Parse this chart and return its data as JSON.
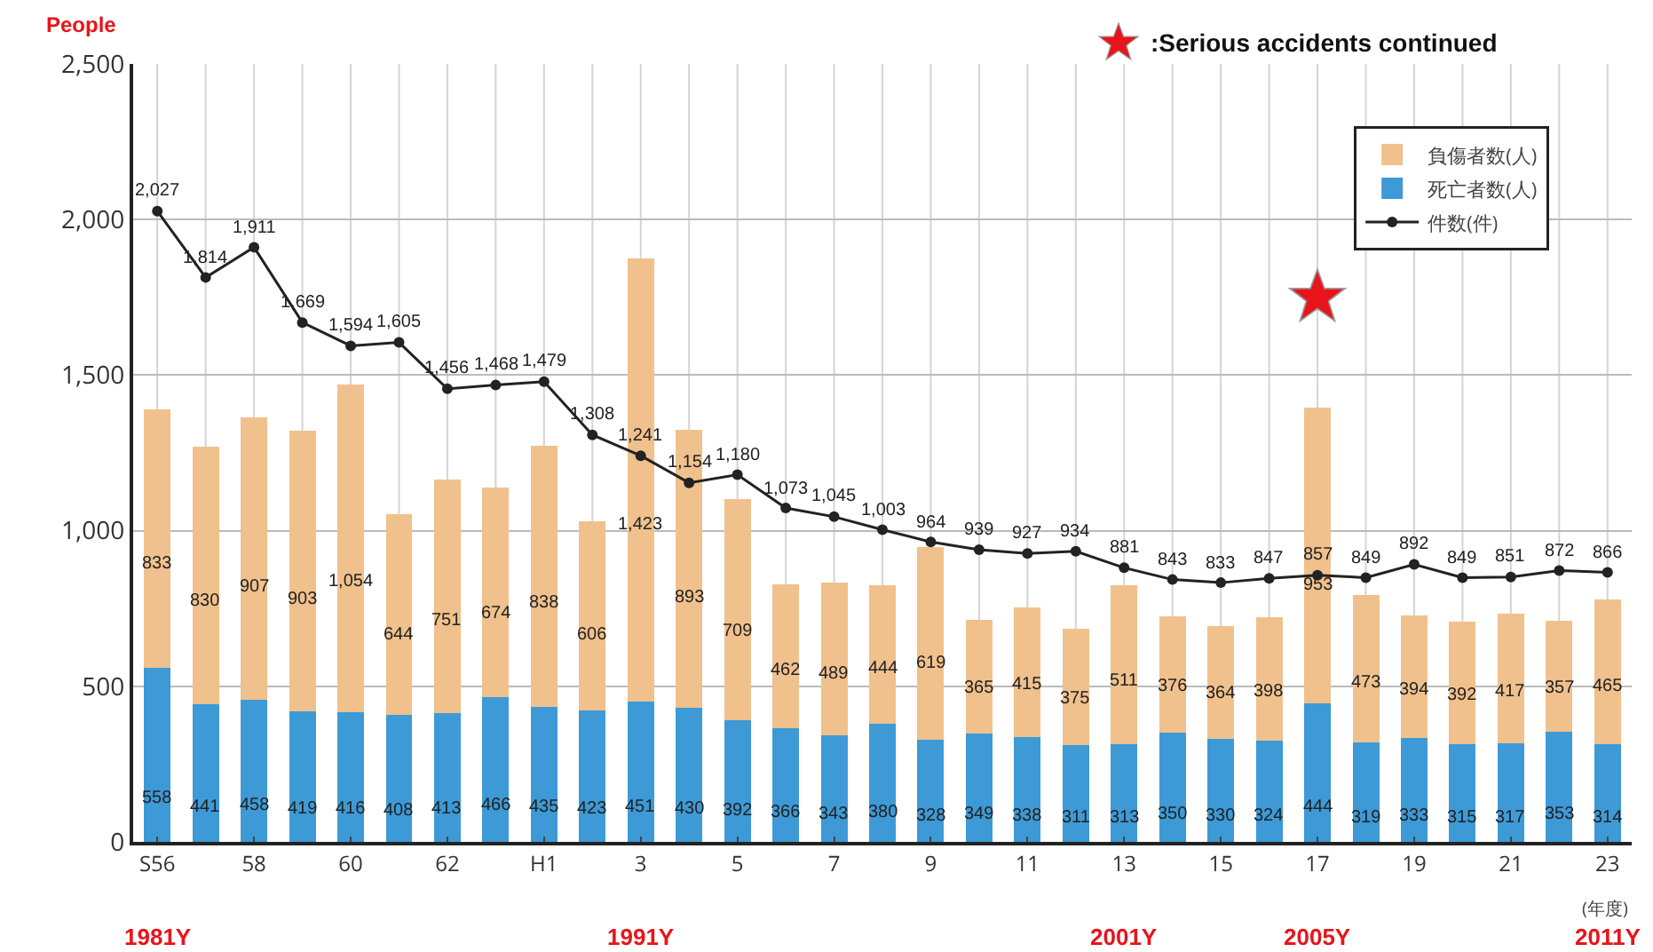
{
  "chart_data": {
    "type": "bar",
    "stacked": true,
    "ylabel": "People",
    "xlabel": "(年度)",
    "annotations": [
      ":Serious accidents continued",
      "1981Y",
      "1991Y",
      "2001Y",
      "2005Y",
      "2011Y"
    ],
    "categories": [
      "S56",
      null,
      "58",
      null,
      "60",
      null,
      "62",
      null,
      "H1",
      null,
      "3",
      null,
      "5",
      null,
      "7",
      null,
      "9",
      null,
      "11",
      null,
      "13",
      null,
      "15",
      null,
      "17",
      null,
      "19",
      null,
      "21",
      null,
      "23"
    ],
    "series": [
      {
        "name": "死亡者数(人)",
        "color": "#3d9ad6",
        "values": [
          558,
          441,
          458,
          419,
          416,
          408,
          413,
          466,
          435,
          423,
          451,
          430,
          392,
          366,
          343,
          380,
          328,
          349,
          338,
          311,
          313,
          350,
          330,
          324,
          444,
          319,
          333,
          315,
          317,
          353,
          314
        ],
        "value_labels": [
          "558",
          "441",
          "458",
          "419",
          "416",
          "408",
          "413",
          "466",
          "435",
          "423",
          "451",
          "430",
          "392",
          "366",
          "343",
          "380",
          "328",
          "349",
          "338",
          "311",
          "313",
          "350",
          "330",
          "324",
          "444",
          "319",
          "333",
          "315",
          "317",
          "353",
          "314"
        ]
      },
      {
        "name": "負傷者数(人)",
        "color": "#f0c18c",
        "values": [
          833,
          830,
          907,
          903,
          1054,
          644,
          751,
          674,
          838,
          606,
          1423,
          893,
          709,
          462,
          489,
          444,
          619,
          365,
          415,
          375,
          511,
          376,
          364,
          398,
          953,
          473,
          394,
          392,
          417,
          357,
          465
        ],
        "value_labels": [
          "833",
          "830",
          "907",
          "903",
          "1,054",
          "644",
          "751",
          "674",
          "838",
          "606",
          "1,423",
          "893",
          "709",
          "462",
          "489",
          "444",
          "619",
          "365",
          "415",
          "375",
          "511",
          "376",
          "364",
          "398",
          "953",
          "473",
          "394",
          "392",
          "417",
          "357",
          "465"
        ]
      },
      {
        "name": "件数(件)",
        "type": "line",
        "color": "#222222",
        "marker": "circle",
        "values": [
          2027,
          1814,
          1911,
          1669,
          1594,
          1605,
          1456,
          1468,
          1479,
          1308,
          1241,
          1154,
          1180,
          1073,
          1045,
          1003,
          964,
          939,
          927,
          934,
          881,
          843,
          833,
          847,
          857,
          849,
          892,
          849,
          851,
          872,
          866
        ],
        "value_labels": [
          "2,027",
          "1,814",
          "1,911",
          "1,669",
          "1,594",
          "1,605",
          "1,456",
          "1,468",
          "1,479",
          "1,308",
          "1,241",
          "1,154",
          "1,180",
          "1,073",
          "1,045",
          "1,003",
          "964",
          "939",
          "927",
          "934",
          "881",
          "843",
          "833",
          "847",
          "857",
          "849",
          "892",
          "849",
          "851",
          "872",
          "866"
        ]
      }
    ],
    "ylim": [
      0,
      2500
    ],
    "yticks": [
      {
        "value": 0,
        "label": "0"
      },
      {
        "value": 500,
        "label": "500"
      },
      {
        "value": 1000,
        "label": "1,000"
      },
      {
        "value": 1500,
        "label": "1,500"
      },
      {
        "value": 2000,
        "label": "2,000"
      },
      {
        "value": 2500,
        "label": "2,500"
      }
    ],
    "grid": true,
    "legend": "top right"
  }
}
